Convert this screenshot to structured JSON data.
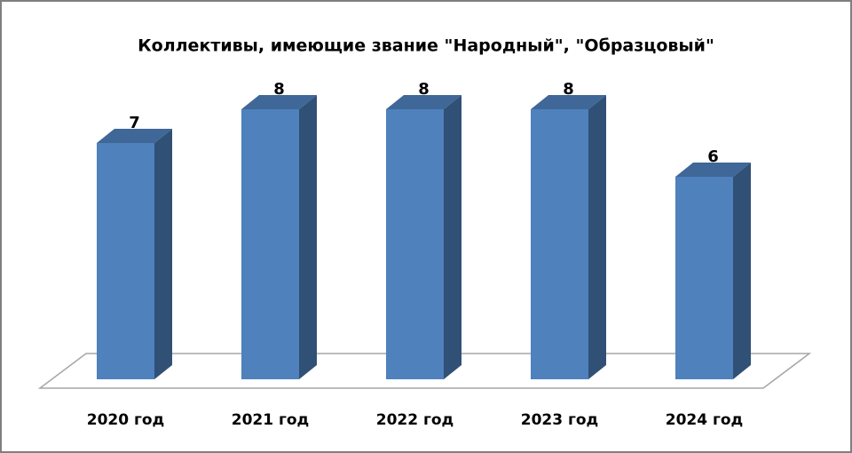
{
  "chart_data": {
    "type": "bar3d",
    "title": "Коллективы, имеющие звание \"Народный\", \"Образцовый\"",
    "categories": [
      "2020 год",
      "2021 год",
      "2022 год",
      "2023 год",
      "2024 год"
    ],
    "values": [
      7,
      8,
      8,
      8,
      6
    ],
    "color": "#4f81bd"
  }
}
